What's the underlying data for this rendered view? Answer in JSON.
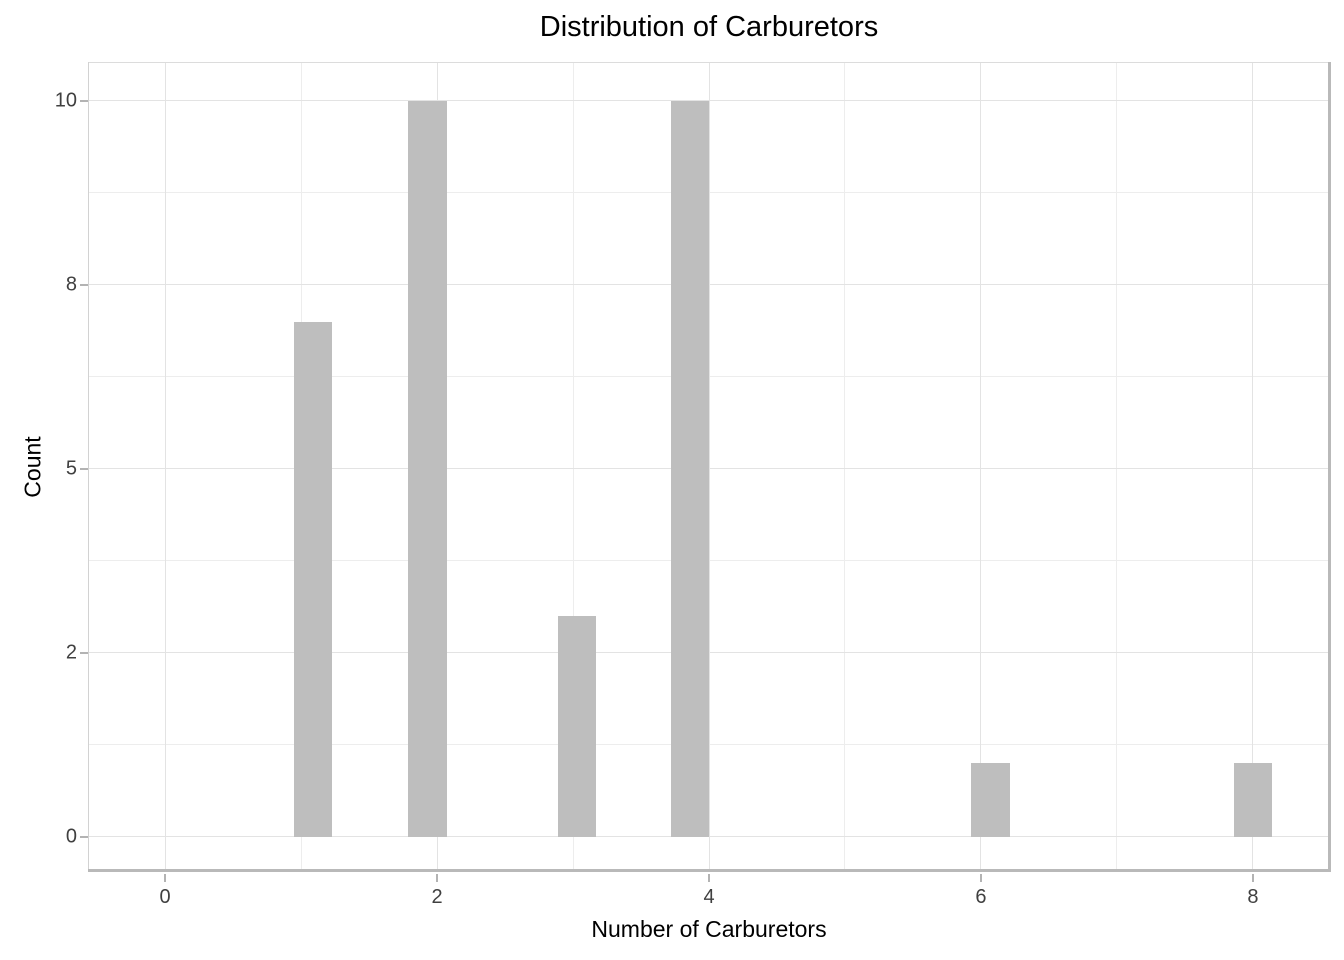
{
  "chart_data": {
    "type": "bar",
    "subtype": "histogram",
    "title": "Distribution of Carburetors",
    "xlabel": "Number of Carburetors",
    "ylabel": "Count",
    "categories": [
      1,
      2,
      3,
      4,
      6,
      8
    ],
    "values": [
      7,
      10,
      3,
      10,
      1,
      1
    ],
    "bar_centers": [
      1.09,
      1.93,
      3.03,
      3.86,
      6.07,
      8.0
    ],
    "bar_width_units": 0.28,
    "x_axis": {
      "range": [
        -0.559,
        8.559
      ],
      "ticks": [
        0,
        2,
        4,
        6,
        8
      ],
      "tick_labels": [
        "0",
        "2",
        "4",
        "6",
        "8"
      ],
      "minor_gridlines": [
        1,
        3,
        5,
        7
      ]
    },
    "y_axis": {
      "range": [
        -0.476,
        10.529
      ],
      "ticks": [
        0,
        2.5,
        5,
        7.5,
        10
      ],
      "tick_labels": [
        "0",
        "2",
        "5",
        "8",
        "10"
      ],
      "minor_gridlines": [
        1.25,
        3.75,
        6.25,
        8.75
      ]
    },
    "grid": "major+minor",
    "legend": "none",
    "colors": {
      "bar_fill": "#bebebe",
      "grid_major": "#e3e3e3",
      "grid_minor": "#ededed",
      "panel_border": "#dcdcdc",
      "axis_line": "#b9b9b9",
      "tick_mark": "#b3b3b3",
      "tick_label": "#404040",
      "text": "#000000",
      "background": "#ffffff"
    }
  }
}
